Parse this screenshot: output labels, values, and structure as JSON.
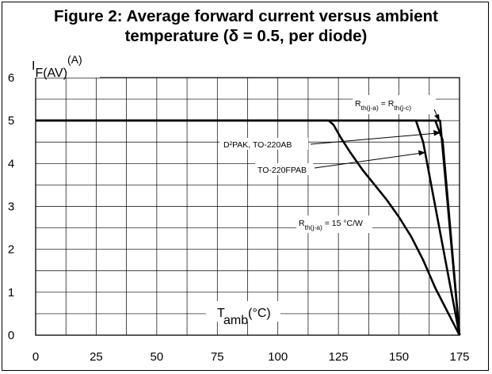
{
  "title": {
    "line1": "Figure 2: Average forward current versus ambient",
    "line2": "temperature (δ = 0.5, per diode)"
  },
  "chart_data": {
    "type": "line",
    "title": "Figure 2: Average forward current versus ambient temperature (δ = 0.5, per diode)",
    "ylabel": {
      "main": "I",
      "sub": "F(AV)",
      "unit": "(A)"
    },
    "xlabel": {
      "main": "T",
      "sub": "amb",
      "unit": "(°C)"
    },
    "xlim": [
      0,
      175
    ],
    "ylim": [
      0,
      6
    ],
    "x_ticks": [
      0,
      25,
      50,
      75,
      100,
      125,
      150,
      175
    ],
    "y_ticks": [
      0,
      1,
      2,
      3,
      4,
      5,
      6
    ],
    "grid": true,
    "series": [
      {
        "name": "Rth(j-a) = Rth(j-c)",
        "x": [
          0,
          167,
          175
        ],
        "y": [
          5,
          5,
          0
        ]
      },
      {
        "name": "D²PAK, TO-220AB",
        "x": [
          0,
          165,
          168,
          175
        ],
        "y": [
          5,
          5,
          4.55,
          0
        ]
      },
      {
        "name": "TO-220FPAB",
        "x": [
          0,
          157,
          160,
          175
        ],
        "y": [
          5,
          5,
          4.5,
          0
        ]
      },
      {
        "name": "Rth(j-a) = 15 °C/W",
        "x": [
          0,
          121,
          123,
          126,
          130,
          135,
          140,
          145,
          150,
          155,
          160,
          165,
          170,
          175
        ],
        "y": [
          5,
          5,
          4.9,
          4.6,
          4.25,
          3.85,
          3.5,
          3.15,
          2.75,
          2.3,
          1.75,
          1.1,
          0.55,
          0
        ]
      }
    ],
    "annotations": [
      {
        "main": "R",
        "sub": "th(j-a)",
        "mid": " = R",
        "sub2": "th(j-c)",
        "tail": ""
      },
      {
        "main": "D²PAK, TO-220AB",
        "sub": "",
        "mid": "",
        "sub2": "",
        "tail": ""
      },
      {
        "main": "TO-220FPAB",
        "sub": "",
        "mid": "",
        "sub2": "",
        "tail": ""
      },
      {
        "main": "R",
        "sub": "th(j-a)",
        "mid": " = 15 °C/W",
        "sub2": "",
        "tail": ""
      }
    ]
  }
}
